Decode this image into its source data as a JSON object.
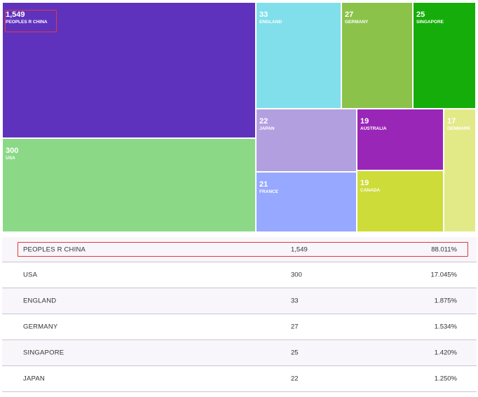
{
  "treemap": {
    "cells": [
      {
        "value": "1,549",
        "name": "PEOPLES R CHINA",
        "color": "#5f32be"
      },
      {
        "value": "300",
        "name": "USA",
        "color": "#8bd986"
      },
      {
        "value": "33",
        "name": "ENGLAND",
        "color": "#80dfea"
      },
      {
        "value": "27",
        "name": "GERMANY",
        "color": "#8bc34a"
      },
      {
        "value": "25",
        "name": "SINGAPORE",
        "color": "#15ad0a"
      },
      {
        "value": "22",
        "name": "JAPAN",
        "color": "#b29fe0"
      },
      {
        "value": "21",
        "name": "FRANCE",
        "color": "#96a8ff"
      },
      {
        "value": "19",
        "name": "AUSTRALIA",
        "color": "#9a26b8"
      },
      {
        "value": "19",
        "name": "CANADA",
        "color": "#cddc39"
      },
      {
        "value": "17",
        "name": "DENMARK",
        "color": "#e2ea88"
      }
    ],
    "highlight_color": "#e2383f"
  },
  "table": {
    "rows": [
      {
        "name": "PEOPLES R CHINA",
        "count": "1,549",
        "percent": "88.011%"
      },
      {
        "name": "USA",
        "count": "300",
        "percent": "17.045%"
      },
      {
        "name": "ENGLAND",
        "count": "33",
        "percent": "1.875%"
      },
      {
        "name": "GERMANY",
        "count": "27",
        "percent": "1.534%"
      },
      {
        "name": "SINGAPORE",
        "count": "25",
        "percent": "1.420%"
      },
      {
        "name": "JAPAN",
        "count": "22",
        "percent": "1.250%"
      }
    ]
  }
}
